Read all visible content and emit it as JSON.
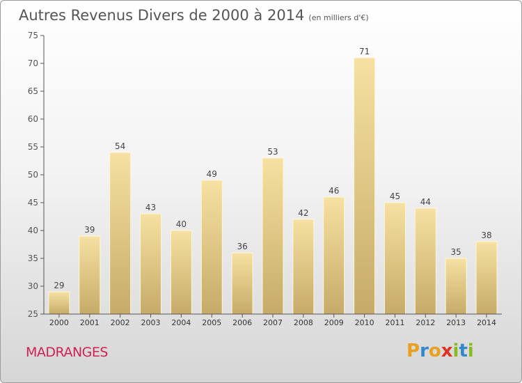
{
  "title": "Autres Revenus Divers de 2000 à 2014",
  "subtitle": "(en milliers d'€)",
  "commune": "MADRANGES",
  "brand": {
    "letters": [
      "P",
      "r",
      "o",
      "x",
      "i",
      "t",
      "i"
    ],
    "colors": [
      "#e8a020",
      "#3388cc",
      "#e8a020",
      "#dd3322",
      "#88bb22",
      "#3388cc",
      "#88bb22"
    ]
  },
  "colors": {
    "bar_light": "#f6e1a2",
    "bar_dark": "#c6ab68",
    "axis": "#555555",
    "grid": "#cccccc",
    "commune_text": "#cc2255"
  },
  "chart_data": {
    "type": "bar",
    "categories": [
      "2000",
      "2001",
      "2002",
      "2003",
      "2004",
      "2005",
      "2006",
      "2007",
      "2008",
      "2009",
      "2010",
      "2011",
      "2012",
      "2013",
      "2014"
    ],
    "values": [
      29,
      39,
      54,
      43,
      40,
      49,
      36,
      53,
      42,
      46,
      71,
      45,
      44,
      35,
      38
    ],
    "ylim": [
      25,
      75
    ],
    "yticks": [
      25,
      30,
      35,
      40,
      45,
      50,
      55,
      60,
      65,
      70,
      75
    ],
    "grid": false,
    "title": "Autres Revenus Divers de 2000 à 2014",
    "xlabel": "",
    "ylabel": ""
  }
}
